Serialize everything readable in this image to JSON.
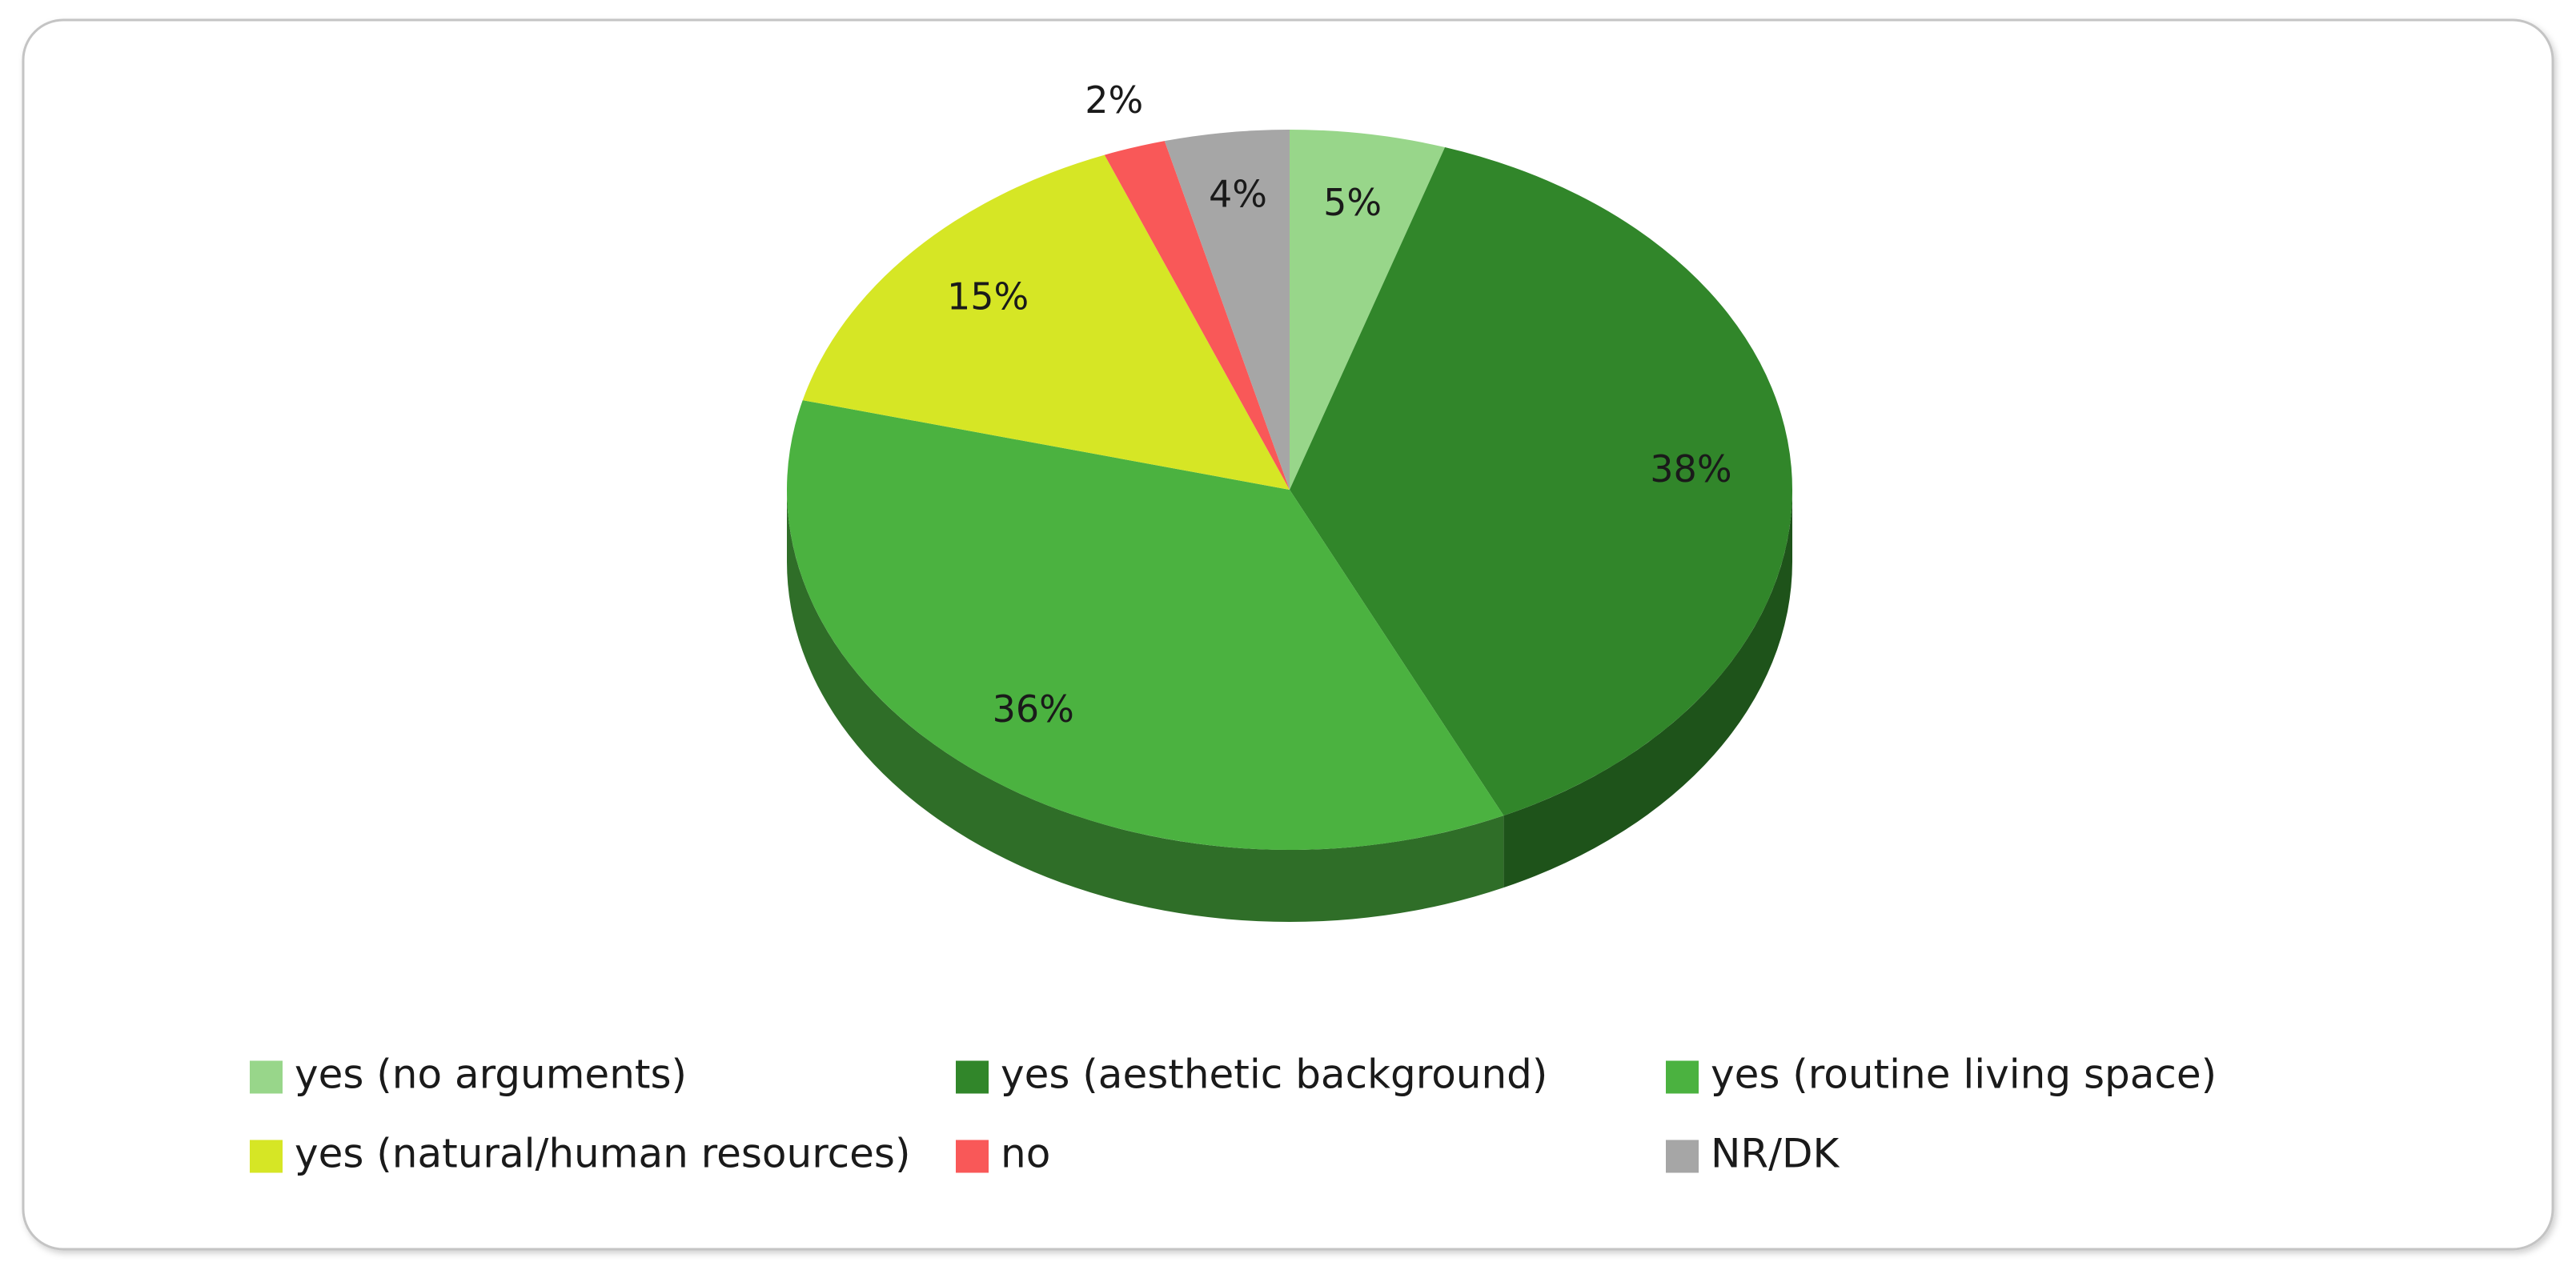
{
  "chart_data": {
    "type": "pie",
    "categories": [
      "yes (no arguments)",
      "yes (aesthetic background)",
      "yes (routine living space)",
      "yes (natural/human resources)",
      "no",
      "NR/DK"
    ],
    "values": [
      5,
      38,
      36,
      15,
      2,
      4
    ],
    "value_labels": [
      "5%",
      "38%",
      "36%",
      "15%",
      "2%",
      "4%"
    ],
    "colors": [
      "#98d68a",
      "#31862a",
      "#4bb240",
      "#d6e625",
      "#f95858",
      "#a6a6a6"
    ]
  }
}
